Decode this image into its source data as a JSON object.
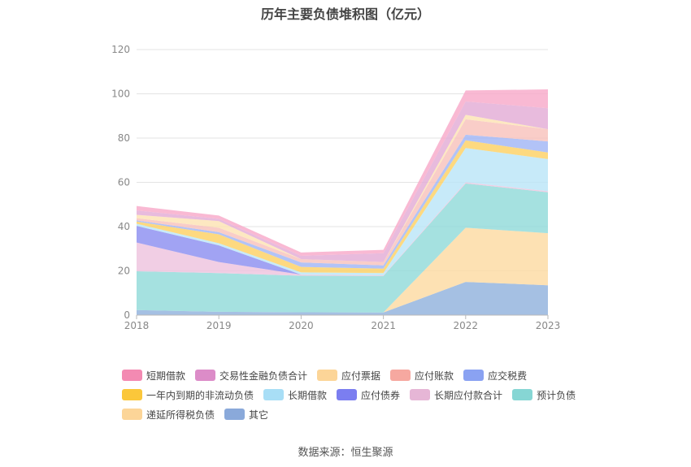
{
  "chart_data": {
    "type": "area",
    "stacked": true,
    "title": "历年主要负债堆积图（亿元）",
    "x": [
      "2018",
      "2019",
      "2020",
      "2021",
      "2022",
      "2023"
    ],
    "ylim": [
      0,
      120
    ],
    "yticks": [
      0,
      20,
      40,
      60,
      80,
      100,
      120
    ],
    "grid": true,
    "legend_position": "bottom",
    "series": [
      {
        "name": "其它",
        "color": "#8fb0dc",
        "values": [
          2.3,
          1.5,
          1.3,
          1.2,
          15.0,
          13.5
        ]
      },
      {
        "name": "递延所得税负债",
        "color": "#fcd9a0",
        "values": [
          0.0,
          0.0,
          0.0,
          0.0,
          24.5,
          23.5
        ]
      },
      {
        "name": "预计负债",
        "color": "#8ed9d8",
        "values": [
          17.5,
          17.5,
          16.5,
          16.5,
          20.0,
          18.5
        ]
      },
      {
        "name": "长期应付款合计",
        "color": "#edc2dd",
        "values": [
          13.0,
          5.0,
          0.5,
          0.3,
          0.5,
          0.5
        ]
      },
      {
        "name": "应付债券",
        "color": "#8a8cf0",
        "values": [
          7.5,
          7.5,
          0.0,
          0.0,
          0.0,
          0.0
        ]
      },
      {
        "name": "长期借款",
        "color": "#b9e5f8",
        "values": [
          1.0,
          1.0,
          1.0,
          1.0,
          15.5,
          14.5
        ]
      },
      {
        "name": "一年内到期的非流动负债",
        "color": "#fcd060",
        "values": [
          1.0,
          4.0,
          2.5,
          2.0,
          3.5,
          3.0
        ]
      },
      {
        "name": "应交税费",
        "color": "#9fb4f5",
        "values": [
          0.5,
          1.0,
          2.0,
          1.5,
          2.5,
          5.0
        ]
      },
      {
        "name": "应付账款",
        "color": "#f8c0ba",
        "values": [
          1.0,
          2.0,
          1.5,
          1.5,
          7.0,
          5.5
        ]
      },
      {
        "name": "应付票据",
        "color": "#fde2b2",
        "values": [
          1.5,
          3.0,
          0.0,
          0.0,
          2.0,
          0.0
        ]
      },
      {
        "name": "交易性金融负债合计",
        "color": "#e2aad4",
        "values": [
          2.0,
          1.0,
          1.5,
          4.0,
          6.0,
          9.5
        ]
      },
      {
        "name": "短期借款",
        "color": "#f8a8c8",
        "values": [
          2.0,
          1.5,
          1.5,
          1.5,
          5.0,
          8.5
        ]
      }
    ],
    "legend_order": [
      "短期借款",
      "交易性金融负债合计",
      "应付票据",
      "应付账款",
      "应交税费",
      "一年内到期的非流动负债",
      "长期借款",
      "应付债券",
      "长期应付款合计",
      "预计负债",
      "递延所得税负债",
      "其它"
    ],
    "legend_colors": {
      "短期借款": "#f38ab2",
      "交易性金融负债合计": "#dc8cc8",
      "应付票据": "#fcd598",
      "应付账款": "#f6a8a0",
      "应交税费": "#8aa2f2",
      "一年内到期的非流动负债": "#fbc73a",
      "长期借款": "#a8def6",
      "应付债券": "#7b7ef0",
      "长期应付款合计": "#e6b6d6",
      "预计负债": "#86d6d4",
      "递延所得税负债": "#fcd598",
      "其它": "#8aa9da"
    }
  },
  "footer": {
    "source": "数据来源：恒生聚源"
  }
}
